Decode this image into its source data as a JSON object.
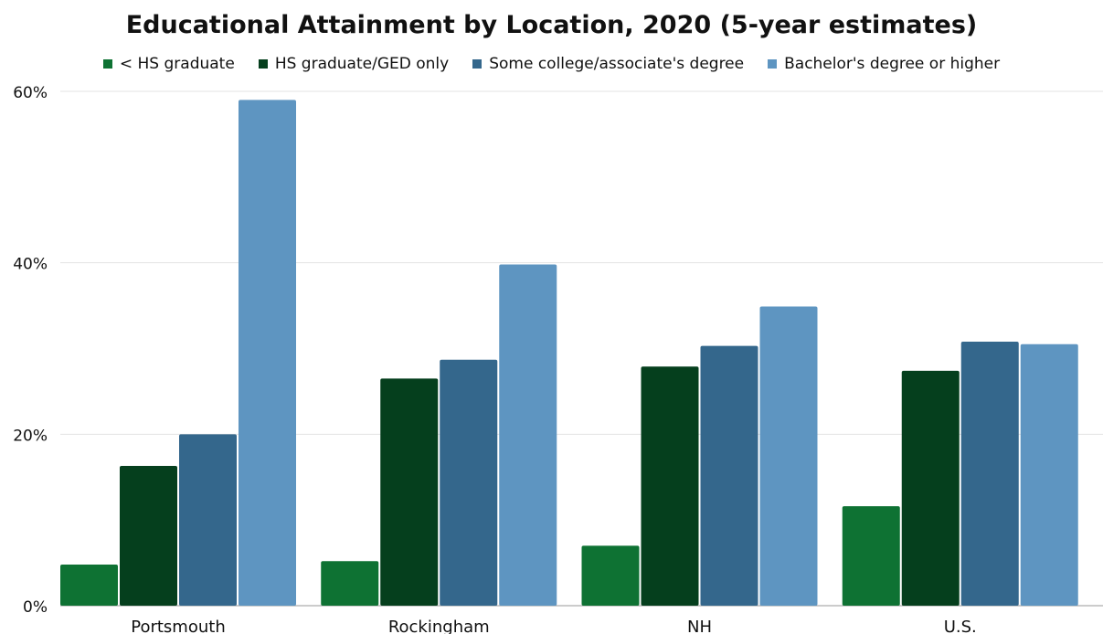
{
  "chart_data": {
    "type": "bar",
    "title": "Educational Attainment by Location, 2020 (5-year estimates)",
    "categories": [
      "Portsmouth",
      "Rockingham",
      "NH",
      "U.S."
    ],
    "series": [
      {
        "name": "< HS graduate",
        "color": "#0e7233",
        "values": [
          4.8,
          5.2,
          7.0,
          11.6
        ]
      },
      {
        "name": "HS graduate/GED only",
        "color": "#053f1d",
        "values": [
          16.3,
          26.5,
          27.9,
          27.4
        ]
      },
      {
        "name": "Some college/associate's degree",
        "color": "#34678c",
        "values": [
          20.0,
          28.7,
          30.3,
          30.8
        ]
      },
      {
        "name": "Bachelor's degree or higher",
        "color": "#5e95c1",
        "values": [
          59.0,
          39.8,
          34.9,
          30.5
        ]
      }
    ],
    "yticks": [
      "0%",
      "20%",
      "40%",
      "60%"
    ],
    "ylim": [
      0,
      60
    ],
    "grid": true,
    "legend_position": "top"
  }
}
